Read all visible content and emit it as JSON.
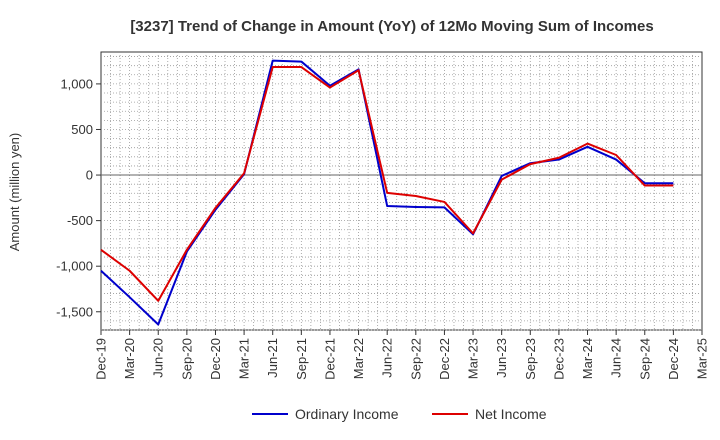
{
  "chart_data": {
    "type": "line",
    "title": "[3237]  Trend of Change in Amount (YoY) of 12Mo Moving Sum of Incomes",
    "xlabel": "",
    "ylabel": "Amount (million yen)",
    "ylim": [
      -1700,
      1350
    ],
    "yticks": [
      -1500,
      -1000,
      -500,
      0,
      500,
      1000
    ],
    "ytick_labels": [
      "-1,500",
      "-1,000",
      "-500",
      "0",
      "500",
      "1,000"
    ],
    "categories": [
      "Dec-19",
      "Mar-20",
      "Jun-20",
      "Sep-20",
      "Dec-20",
      "Mar-21",
      "Jun-21",
      "Sep-21",
      "Dec-21",
      "Mar-22",
      "Jun-22",
      "Sep-22",
      "Dec-22",
      "Mar-23",
      "Jun-23",
      "Sep-23",
      "Dec-23",
      "Mar-24",
      "Jun-24",
      "Sep-24",
      "Dec-24",
      "Mar-25"
    ],
    "grid": true,
    "legend_position": "bottom",
    "series": [
      {
        "name": "Ordinary Income",
        "color": "#0000cc",
        "values": [
          -1050,
          -1340,
          -1640,
          -840,
          -380,
          10,
          1255,
          1245,
          980,
          1160,
          -340,
          -350,
          -355,
          -650,
          -10,
          130,
          170,
          310,
          170,
          -90,
          -90,
          null
        ]
      },
      {
        "name": "Net Income",
        "color": "#dd0000",
        "values": [
          -820,
          -1050,
          -1380,
          -820,
          -360,
          20,
          1185,
          1185,
          960,
          1150,
          -195,
          -230,
          -295,
          -640,
          -50,
          120,
          190,
          345,
          220,
          -115,
          -115,
          null
        ]
      }
    ]
  }
}
